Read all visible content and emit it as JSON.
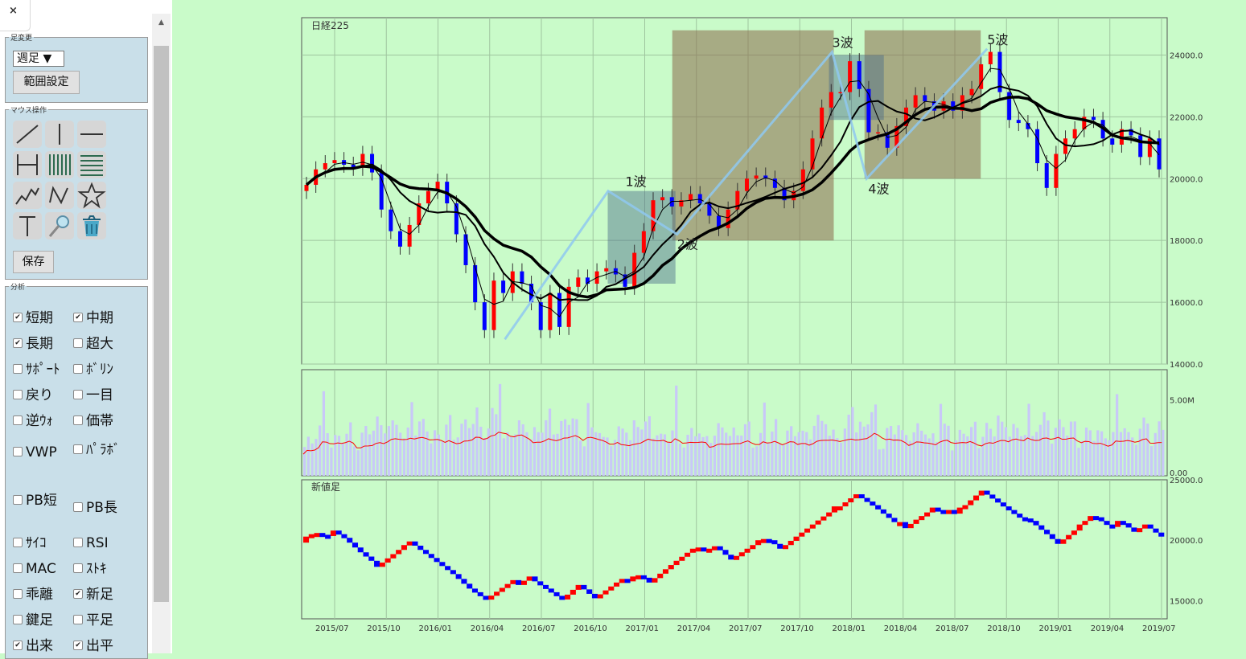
{
  "sidebar": {
    "close_label": "×",
    "interval_group": {
      "legend": "足変更",
      "select_value": "週足",
      "range_button": "範囲設定"
    },
    "mouse_group": {
      "legend": "マウス操作",
      "save_button": "保存",
      "tools": [
        "line-tool-icon",
        "vertical-line-icon",
        "horizontal-line-icon",
        "horizontal-bounds-icon",
        "vertical-fan-icon",
        "horizontal-fan-icon",
        "zigzag-icon",
        "wave-icon",
        "star-icon",
        "text-tool-icon",
        "magnifier-icon",
        "trash-icon"
      ]
    },
    "analysis_group": {
      "legend": "分析",
      "items": [
        {
          "label": "短期",
          "checked": true
        },
        {
          "label": "中期",
          "checked": true
        },
        {
          "label": "長期",
          "checked": true
        },
        {
          "label": "超大",
          "checked": false
        },
        {
          "label": "ｻﾎﾟｰﾄ",
          "checked": false
        },
        {
          "label": "ﾎﾞﾘﾝ",
          "checked": false
        },
        {
          "label": "戻り",
          "checked": false
        },
        {
          "label": "一目",
          "checked": false
        },
        {
          "label": "逆ｳｫ",
          "checked": false
        },
        {
          "label": "価帯",
          "checked": false
        },
        {
          "label": "VWP",
          "checked": false
        },
        {
          "label": "ﾊﾟﾗﾎﾞ",
          "checked": false
        },
        {
          "label": "PB短",
          "checked": false
        },
        {
          "label": "PB長",
          "checked": false
        },
        {
          "label": "ｻｲｺ",
          "checked": false
        },
        {
          "label": "RSI",
          "checked": false
        },
        {
          "label": "MAC",
          "checked": false
        },
        {
          "label": "ｽﾄｷ",
          "checked": false
        },
        {
          "label": "乖離",
          "checked": false
        },
        {
          "label": "新足",
          "checked": true
        },
        {
          "label": "鍵足",
          "checked": false
        },
        {
          "label": "平足",
          "checked": false
        },
        {
          "label": "出来",
          "checked": true
        },
        {
          "label": "出平",
          "checked": true
        }
      ]
    }
  },
  "chart_data": [
    {
      "type": "candlestick",
      "title": "日経225",
      "ylim": [
        14000,
        25000
      ],
      "ytick_labels": [
        "14000.0",
        "16000.0",
        "18000.0",
        "20000.0",
        "22000.0",
        "24000.0"
      ],
      "ytick_values": [
        14000,
        16000,
        18000,
        20000,
        22000,
        24000
      ],
      "xtick_labels": [
        "2015/07",
        "2015/10",
        "2016/01",
        "2016/04",
        "2016/07",
        "2016/10",
        "2017/01",
        "2017/04",
        "2017/07",
        "2017/10",
        "2018/01",
        "2018/04",
        "2018/07",
        "2018/10",
        "2019/01",
        "2019/04",
        "2019/07"
      ],
      "close_series": [
        19800,
        20300,
        20500,
        20600,
        20450,
        20350,
        20800,
        20200,
        19000,
        18300,
        17800,
        18500,
        19200,
        19600,
        19900,
        19200,
        18200,
        17200,
        16000,
        15100,
        16700,
        16300,
        17000,
        16600,
        16000,
        15100,
        16300,
        15200,
        16500,
        16800,
        16600,
        17000,
        17100,
        16900,
        16500,
        17600,
        18300,
        19300,
        19400,
        19100,
        19300,
        19500,
        19200,
        18800,
        18400,
        19000,
        19600,
        20000,
        20100,
        20000,
        19700,
        19300,
        19600,
        20300,
        21300,
        22300,
        22800,
        22800,
        23800,
        22900,
        21500,
        21500,
        21000,
        21700,
        22300,
        22700,
        22500,
        22200,
        22500,
        22200,
        22700,
        22900,
        23700,
        24100,
        22800,
        21900,
        21800,
        21600,
        20500,
        19700,
        20800,
        21300,
        21600,
        22000,
        21900,
        21300,
        21100,
        21600,
        21400,
        20700,
        21300,
        20300
      ],
      "series": [
        {
          "name": "短期",
          "color": "#000000",
          "width": 1
        },
        {
          "name": "中期",
          "color": "#000000",
          "width": 2
        },
        {
          "name": "長期",
          "color": "#000000",
          "width": 3.5
        }
      ],
      "waves": [
        {
          "label": "1波",
          "date": "2017/01"
        },
        {
          "label": "2波",
          "date": "2017/04"
        },
        {
          "label": "3波",
          "date": "2018/01"
        },
        {
          "label": "4波",
          "date": "2018/03"
        },
        {
          "label": "5波",
          "date": "2018/10"
        }
      ],
      "wave_points": [
        {
          "date": "2016/06",
          "value": 14800
        },
        {
          "date": "2016/12",
          "value": 19600
        },
        {
          "date": "2017/04",
          "value": 18200
        },
        {
          "date": "2018/01",
          "value": 24100
        },
        {
          "date": "2018/03",
          "value": 20000
        },
        {
          "date": "2018/10",
          "value": 24200
        }
      ],
      "colors": {
        "up": "#ff0000",
        "down": "#0000ff",
        "wave_line": "#8fc8f0"
      }
    },
    {
      "type": "bar",
      "title": "",
      "ylim": [
        0,
        7000000
      ],
      "ytick_labels": [
        "0.00",
        "5.00M"
      ],
      "ytick_values": [
        0,
        5000000
      ],
      "series": [
        {
          "name": "出来",
          "color": "#c8c8f8"
        },
        {
          "name": "出平",
          "color": "#ff0000"
        }
      ]
    },
    {
      "type": "new-price-bars",
      "title": "新値足",
      "ylim": [
        13500,
        25000
      ],
      "ytick_labels": [
        "15000.0",
        "20000.0",
        "25000.0"
      ],
      "ytick_values": [
        15000,
        20000,
        25000
      ],
      "colors": {
        "up": "#ff0000",
        "down": "#0000ff"
      }
    }
  ]
}
